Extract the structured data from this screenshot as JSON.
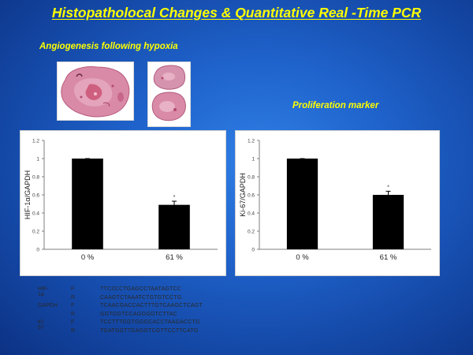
{
  "title": "Histopatholocal Changes & Quantitative Real -Time PCR",
  "left_panel": {
    "subtitle": "Angiogenesis following hypoxia"
  },
  "right_panel": {
    "subtitle": "Proliferation marker"
  },
  "colors": {
    "title": "#ffff00",
    "bar": "#000000",
    "background": "#1f63cc",
    "tissue": "#c96a8c"
  },
  "chart_data": [
    {
      "type": "bar",
      "title": "",
      "categories": [
        "0 %",
        "61 %"
      ],
      "values": [
        1.0,
        0.49
      ],
      "error": [
        0.0,
        0.04
      ],
      "significance": [
        "",
        "*"
      ],
      "xlabel": "",
      "ylabel": "HIF-1α/GAPDH",
      "ylim": [
        0,
        1.2
      ],
      "yticks": [
        "0",
        "0.2",
        "0.4",
        "0.6",
        "0.8",
        "1",
        "1.2"
      ],
      "grid": false
    },
    {
      "type": "bar",
      "title": "",
      "categories": [
        "0 %",
        "61 %"
      ],
      "values": [
        1.0,
        0.6
      ],
      "error": [
        0.0,
        0.04
      ],
      "significance": [
        "",
        "*"
      ],
      "xlabel": "",
      "ylabel": "Ki-67/GAPDH",
      "ylim": [
        0,
        1.2
      ],
      "yticks": [
        "0",
        "0.2",
        "0.4",
        "0.6",
        "0.8",
        "1",
        "1.2"
      ],
      "grid": false
    }
  ],
  "primers": [
    {
      "gene": "HIF-1a",
      "dir": "F",
      "seq": "TTCZCCTGAGCCTAATAGTCC"
    },
    {
      "gene": "",
      "dir": "R",
      "seq": "CAAGTCTAAATCTGTGTCCTG"
    },
    {
      "gene": "GAPDH",
      "dir": "F",
      "seq": "TCAACGACCACTTTGTCAAGCTCAGT"
    },
    {
      "gene": "",
      "dir": "R",
      "seq": "GGTGGTCCAGGGGTCTTAC"
    },
    {
      "gene": "Ki-67",
      "dir": "F",
      "seq": "TCCTTTGGTGGGCACCTAAGACCTG"
    },
    {
      "gene": "",
      "dir": "R",
      "seq": "TGATGGTTGAGGTCGTTCCTTCATG"
    }
  ]
}
